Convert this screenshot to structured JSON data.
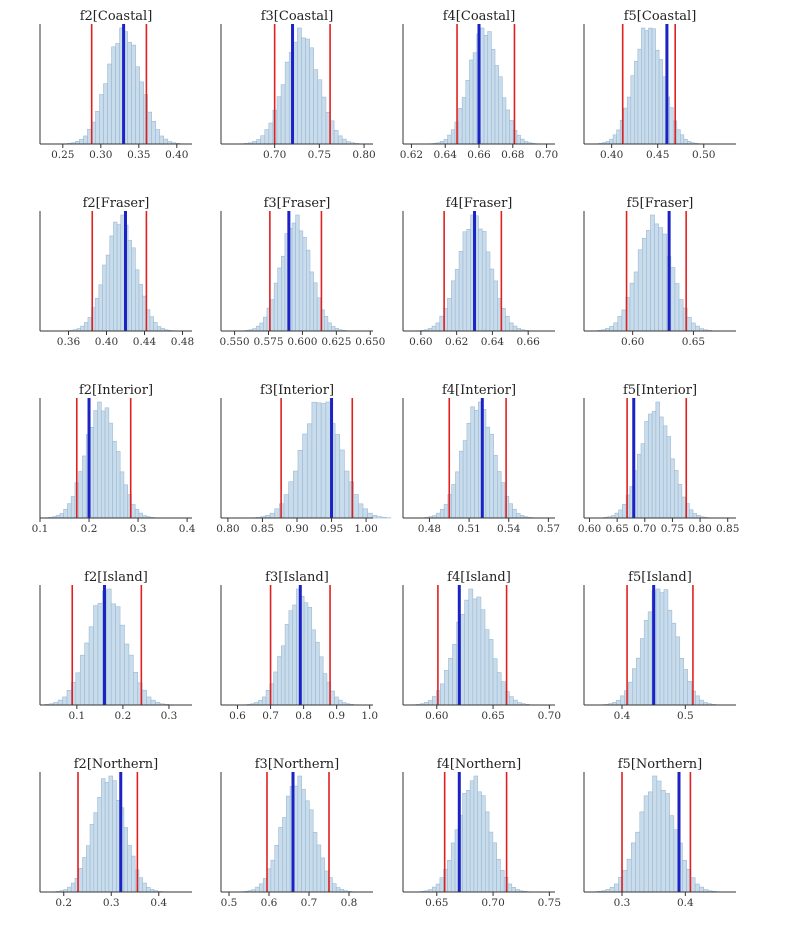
{
  "chart_data": [
    {
      "type": "bar",
      "title": "f2[Coastal]",
      "xlim": [
        0.22,
        0.42
      ],
      "ticks": [
        0.25,
        0.3,
        0.35,
        0.4
      ],
      "tick_labels": [
        "0.25",
        "0.30",
        "0.35",
        "0.40"
      ],
      "mean": 0.33,
      "sd": 0.022,
      "ci": [
        0.288,
        0.36
      ],
      "marker": 0.33
    },
    {
      "type": "bar",
      "title": "f3[Coastal]",
      "xlim": [
        0.64,
        0.81
      ],
      "ticks": [
        0.7,
        0.75,
        0.8
      ],
      "tick_labels": [
        "0.70",
        "0.75",
        "0.80"
      ],
      "mean": 0.73,
      "sd": 0.019,
      "ci": [
        0.7,
        0.762
      ],
      "marker": 0.72
    },
    {
      "type": "bar",
      "title": "f4[Coastal]",
      "xlim": [
        0.615,
        0.705
      ],
      "ticks": [
        0.62,
        0.64,
        0.66,
        0.68,
        0.7
      ],
      "tick_labels": [
        "0.62",
        "0.64",
        "0.66",
        "0.68",
        "0.70"
      ],
      "mean": 0.663,
      "sd": 0.009,
      "ci": [
        0.647,
        0.681
      ],
      "marker": 0.66
    },
    {
      "type": "bar",
      "title": "f5[Coastal]",
      "xlim": [
        0.37,
        0.535
      ],
      "ticks": [
        0.4,
        0.45,
        0.5
      ],
      "tick_labels": [
        "0.40",
        "0.45",
        "0.50"
      ],
      "mean": 0.44,
      "sd": 0.016,
      "ci": [
        0.412,
        0.469
      ],
      "marker": 0.46
    },
    {
      "type": "bar",
      "title": "f2[Fraser]",
      "xlim": [
        0.33,
        0.49
      ],
      "ticks": [
        0.36,
        0.4,
        0.44,
        0.48
      ],
      "tick_labels": [
        "0.36",
        "0.40",
        "0.44",
        "0.48"
      ],
      "mean": 0.415,
      "sd": 0.016,
      "ci": [
        0.385,
        0.442
      ],
      "marker": 0.42
    },
    {
      "type": "bar",
      "title": "f3[Fraser]",
      "xlim": [
        0.54,
        0.652
      ],
      "ticks": [
        0.55,
        0.575,
        0.6,
        0.625,
        0.65
      ],
      "tick_labels": [
        "0.550",
        "0.575",
        "0.600",
        "0.625",
        "0.650"
      ],
      "mean": 0.595,
      "sd": 0.011,
      "ci": [
        0.576,
        0.614
      ],
      "marker": 0.59
    },
    {
      "type": "bar",
      "title": "f4[Fraser]",
      "xlim": [
        0.59,
        0.675
      ],
      "ticks": [
        0.6,
        0.62,
        0.64,
        0.66
      ],
      "tick_labels": [
        "0.60",
        "0.62",
        "0.64",
        "0.66"
      ],
      "mean": 0.63,
      "sd": 0.009,
      "ci": [
        0.613,
        0.645
      ],
      "marker": 0.63
    },
    {
      "type": "bar",
      "title": "f5[Fraser]",
      "xlim": [
        0.56,
        0.685
      ],
      "ticks": [
        0.6,
        0.65
      ],
      "tick_labels": [
        "0.60",
        "0.65"
      ],
      "mean": 0.618,
      "sd": 0.014,
      "ci": [
        0.595,
        0.644
      ],
      "marker": 0.63
    },
    {
      "type": "bar",
      "title": "f2[Interior]",
      "xlim": [
        0.1,
        0.41
      ],
      "ticks": [
        0.1,
        0.2,
        0.3,
        0.4
      ],
      "tick_labels": [
        "0.1",
        "0.2",
        "0.3",
        "0.4"
      ],
      "mean": 0.225,
      "sd": 0.032,
      "ci": [
        0.175,
        0.285
      ],
      "marker": 0.2
    },
    {
      "type": "bar",
      "title": "f3[Interior]",
      "xlim": [
        0.79,
        1.01
      ],
      "ticks": [
        0.8,
        0.85,
        0.9,
        0.95,
        1.0
      ],
      "tick_labels": [
        "0.80",
        "0.85",
        "0.90",
        "0.95",
        "1.00"
      ],
      "mean": 0.935,
      "sd": 0.028,
      "ci": [
        0.877,
        0.98
      ],
      "marker": 0.95
    },
    {
      "type": "bar",
      "title": "f4[Interior]",
      "xlim": [
        0.46,
        0.575
      ],
      "ticks": [
        0.48,
        0.51,
        0.54,
        0.57
      ],
      "tick_labels": [
        "0.48",
        "0.51",
        "0.54",
        "0.57"
      ],
      "mean": 0.517,
      "sd": 0.012,
      "ci": [
        0.495,
        0.538
      ],
      "marker": 0.52
    },
    {
      "type": "bar",
      "title": "f5[Interior]",
      "xlim": [
        0.59,
        0.865
      ],
      "ticks": [
        0.6,
        0.65,
        0.7,
        0.75,
        0.8,
        0.85
      ],
      "tick_labels": [
        "0.60",
        "0.65",
        "0.70",
        "0.75",
        "0.80",
        "0.85"
      ],
      "mean": 0.72,
      "sd": 0.028,
      "ci": [
        0.668,
        0.775
      ],
      "marker": 0.68
    },
    {
      "type": "bar",
      "title": "f2[Island]",
      "xlim": [
        0.02,
        0.35
      ],
      "ticks": [
        0.1,
        0.2,
        0.3
      ],
      "tick_labels": [
        "0.1",
        "0.2",
        "0.3"
      ],
      "mean": 0.165,
      "sd": 0.04,
      "ci": [
        0.09,
        0.24
      ],
      "marker": 0.16
    },
    {
      "type": "bar",
      "title": "f3[Island]",
      "xlim": [
        0.55,
        1.01
      ],
      "ticks": [
        0.6,
        0.7,
        0.8,
        0.9,
        1.0
      ],
      "tick_labels": [
        "0.6",
        "0.7",
        "0.8",
        "0.9",
        "1.0"
      ],
      "mean": 0.79,
      "sd": 0.048,
      "ci": [
        0.7,
        0.88
      ],
      "marker": 0.79
    },
    {
      "type": "bar",
      "title": "f4[Island]",
      "xlim": [
        0.57,
        0.705
      ],
      "ticks": [
        0.6,
        0.65,
        0.7
      ],
      "tick_labels": [
        "0.60",
        "0.65",
        "0.70"
      ],
      "mean": 0.632,
      "sd": 0.015,
      "ci": [
        0.601,
        0.662
      ],
      "marker": 0.62
    },
    {
      "type": "bar",
      "title": "f5[Island]",
      "xlim": [
        0.34,
        0.58
      ],
      "ticks": [
        0.4,
        0.5
      ],
      "tick_labels": [
        "0.4",
        "0.5"
      ],
      "mean": 0.46,
      "sd": 0.026,
      "ci": [
        0.408,
        0.512
      ],
      "marker": 0.45
    },
    {
      "type": "bar",
      "title": "f2[Northern]",
      "xlim": [
        0.15,
        0.47
      ],
      "ticks": [
        0.2,
        0.3,
        0.4
      ],
      "tick_labels": [
        "0.2",
        "0.3",
        "0.4"
      ],
      "mean": 0.295,
      "sd": 0.033,
      "ci": [
        0.23,
        0.355
      ],
      "marker": 0.32
    },
    {
      "type": "bar",
      "title": "f3[Northern]",
      "xlim": [
        0.48,
        0.86
      ],
      "ticks": [
        0.5,
        0.6,
        0.7,
        0.8
      ],
      "tick_labels": [
        "0.5",
        "0.6",
        "0.7",
        "0.8"
      ],
      "mean": 0.672,
      "sd": 0.04,
      "ci": [
        0.595,
        0.75
      ],
      "marker": 0.66
    },
    {
      "type": "bar",
      "title": "f4[Northern]",
      "xlim": [
        0.62,
        0.755
      ],
      "ticks": [
        0.65,
        0.7,
        0.75
      ],
      "tick_labels": [
        "0.65",
        "0.70",
        "0.75"
      ],
      "mean": 0.683,
      "sd": 0.014,
      "ci": [
        0.657,
        0.712
      ],
      "marker": 0.67
    },
    {
      "type": "bar",
      "title": "f5[Northern]",
      "xlim": [
        0.24,
        0.48
      ],
      "ticks": [
        0.3,
        0.4
      ],
      "tick_labels": [
        "0.3",
        "0.4"
      ],
      "mean": 0.355,
      "sd": 0.028,
      "ci": [
        0.3,
        0.408
      ],
      "marker": 0.39
    }
  ]
}
